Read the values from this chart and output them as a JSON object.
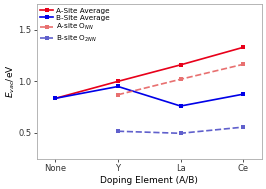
{
  "x_labels": [
    "None",
    "Y",
    "La",
    "Ce"
  ],
  "x_values": [
    0,
    1,
    2,
    3
  ],
  "a_site_avg": [
    0.835,
    1.0,
    1.16,
    1.33
  ],
  "b_site_avg": [
    0.835,
    0.95,
    0.76,
    0.875
  ],
  "a_site_onn": [
    0.87,
    1.02,
    1.165
  ],
  "b_site_o2nn": [
    0.515,
    0.495,
    0.555
  ],
  "ylabel": "$E_{vac}$/eV",
  "xlabel": "Doping Element (A/B)",
  "legend_labels": [
    "A-Site Average",
    "B-Site Average",
    "A-site O$_{NN}$",
    "B-site O$_{2NN}$"
  ],
  "ylim": [
    0.25,
    1.75
  ],
  "yticks": [
    0.5,
    1.0,
    1.5
  ],
  "red_solid": "#e8001a",
  "blue_solid": "#0000e8",
  "red_dashed": "#e87070",
  "blue_dashed": "#6060cc",
  "bg_color": "#ffffff",
  "label_fontsize": 6.5,
  "tick_fontsize": 6,
  "legend_fontsize": 5.2,
  "line_width": 1.2,
  "marker_size": 3.5
}
